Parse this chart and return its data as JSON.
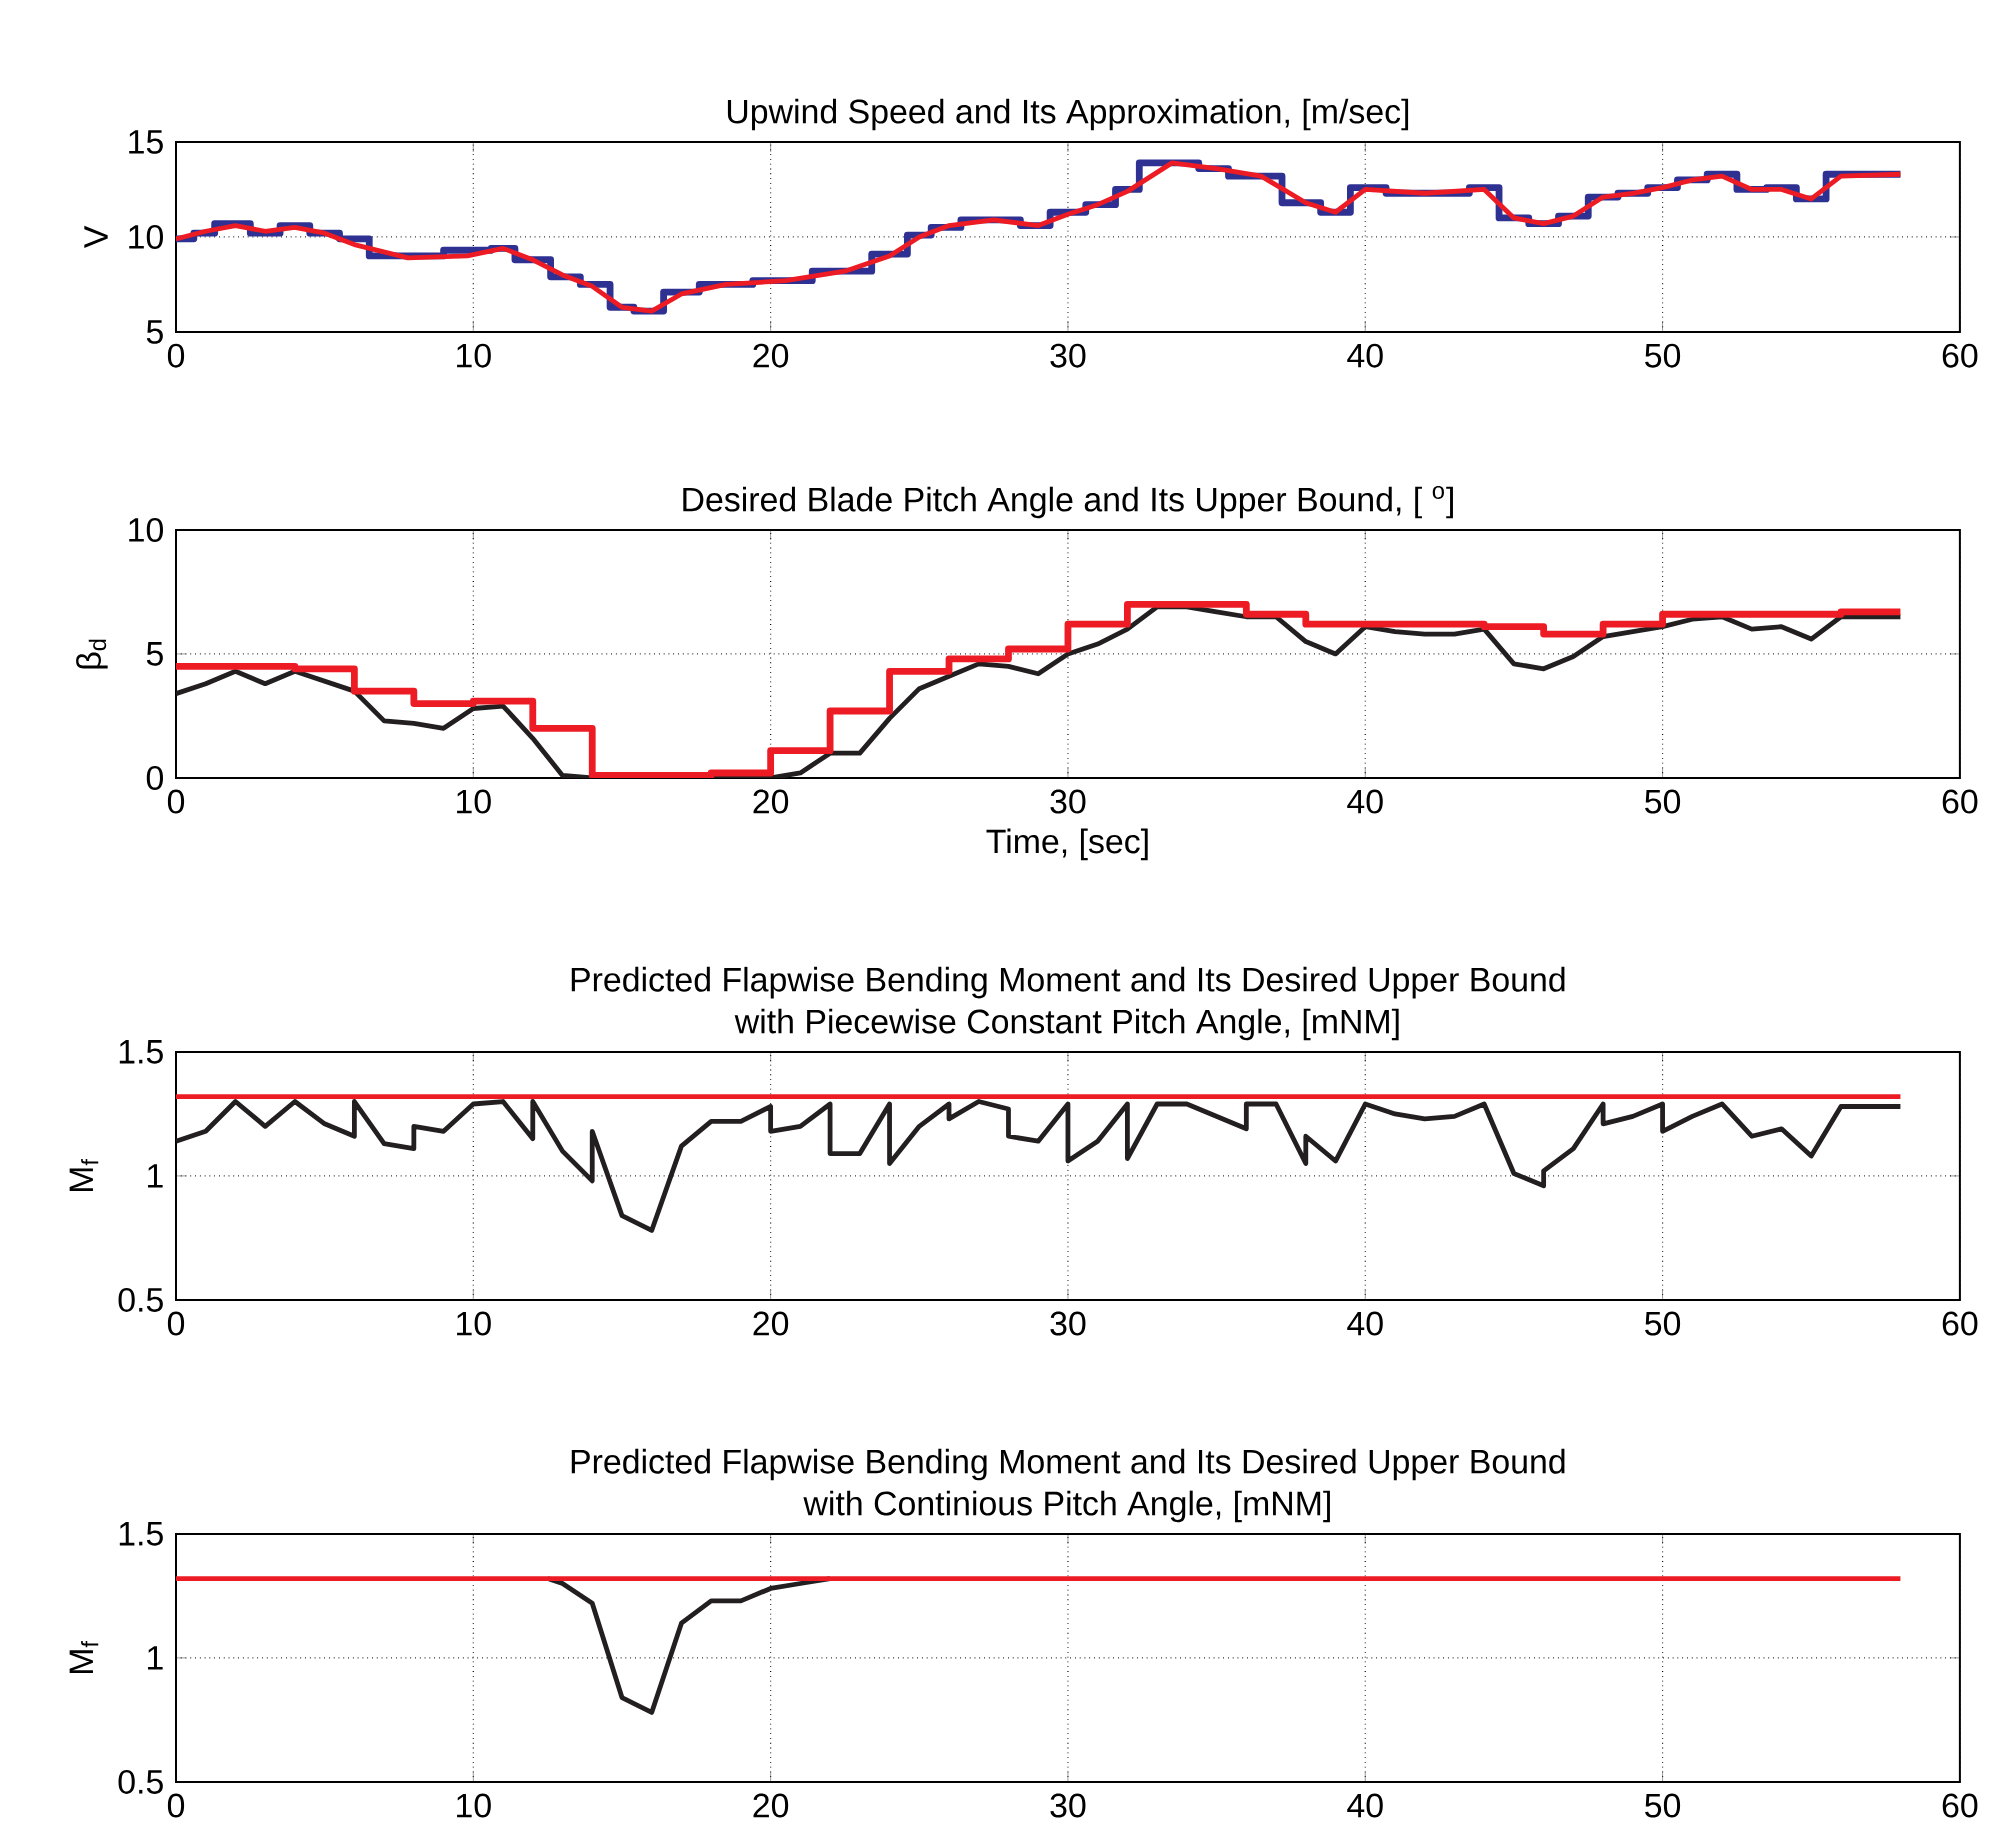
{
  "chart_data": [
    {
      "type": "line",
      "title": "Upwind Speed and Its Approximation, [m/sec]",
      "ylabel": "V",
      "xlim": [
        0,
        60
      ],
      "xticks": [
        0,
        10,
        20,
        30,
        40,
        50,
        60
      ],
      "ylim": [
        5,
        15
      ],
      "yticks": [
        5,
        10,
        15
      ],
      "grid": true,
      "line_style": "solid",
      "series": [
        {
          "type": "step",
          "color": "#2e3192",
          "x": [
            0,
            0.6,
            1.3,
            2.5,
            3.5,
            4.5,
            5.5,
            6.5,
            9.0,
            10.6,
            11.4,
            12.6,
            13.6,
            14.6,
            15.4,
            16.4,
            17.6,
            19.4,
            21.4,
            23.4,
            24.6,
            25.4,
            26.4,
            28.4,
            29.4,
            30.6,
            31.6,
            32.4,
            34.4,
            35.4,
            37.2,
            38.5,
            39.5,
            40.7,
            43.5,
            44.5,
            45.5,
            46.5,
            47.5,
            48.5,
            49.5,
            50.5,
            51.5,
            52.5,
            53.5,
            54.5,
            55.5,
            58
          ],
          "values": [
            9.9,
            10.2,
            10.7,
            10.2,
            10.6,
            10.2,
            9.9,
            9.0,
            9.3,
            9.4,
            8.8,
            7.9,
            7.5,
            6.3,
            6.1,
            7.1,
            7.5,
            7.7,
            8.2,
            9.1,
            10.1,
            10.5,
            10.9,
            10.6,
            11.3,
            11.7,
            12.5,
            13.9,
            13.6,
            13.2,
            11.8,
            11.3,
            12.6,
            12.3,
            12.6,
            11.0,
            10.7,
            11.1,
            12.1,
            12.3,
            12.6,
            13.0,
            13.3,
            12.5,
            12.6,
            12.0,
            13.3,
            13.3
          ]
        },
        {
          "color": "#ed1c24",
          "x": [
            0,
            1,
            2,
            3,
            4,
            5,
            6,
            7.8,
            9.8,
            11,
            12,
            13,
            14,
            15,
            16,
            17,
            18.5,
            20.5,
            22.5,
            24,
            25,
            26,
            27.5,
            29,
            30,
            31,
            32,
            33.5,
            35,
            36.5,
            38,
            39,
            40,
            42,
            44,
            45,
            46,
            47,
            48,
            49,
            50,
            51,
            52,
            53,
            54,
            55,
            56,
            58
          ],
          "values": [
            9.9,
            10.3,
            10.6,
            10.3,
            10.5,
            10.2,
            9.6,
            8.9,
            9.0,
            9.4,
            8.8,
            8.0,
            7.4,
            6.3,
            6.1,
            7.0,
            7.5,
            7.7,
            8.2,
            9.0,
            10.0,
            10.6,
            10.9,
            10.6,
            11.2,
            11.7,
            12.4,
            13.9,
            13.6,
            13.2,
            11.8,
            11.3,
            12.5,
            12.3,
            12.5,
            11.0,
            10.7,
            11.1,
            12.1,
            12.3,
            12.6,
            13.0,
            13.2,
            12.5,
            12.5,
            12.0,
            13.2,
            13.3
          ]
        }
      ]
    },
    {
      "type": "line",
      "title": "Desired Blade Pitch Angle and Its Upper Bound, [ $^{o}$]",
      "xlabel": "Time, [sec]",
      "ylabel": "β$_{d}$",
      "xlim": [
        0,
        60
      ],
      "xticks": [
        0,
        10,
        20,
        30,
        40,
        50,
        60
      ],
      "ylim": [
        0,
        10
      ],
      "yticks": [
        0,
        5,
        10
      ],
      "grid": true,
      "line_style": "solid",
      "series": [
        {
          "color": "#231f20",
          "x": [
            0,
            1,
            2,
            3,
            4,
            5,
            6,
            7,
            8,
            9,
            10,
            11,
            12,
            13,
            14,
            18,
            20,
            21,
            22,
            23,
            24,
            25,
            26,
            27,
            28,
            29,
            30,
            31,
            32,
            33,
            34,
            35,
            36,
            37,
            38,
            39,
            40,
            41,
            42,
            43,
            44,
            45,
            46,
            47,
            48,
            49,
            50,
            51,
            52,
            53,
            54,
            55,
            56,
            57,
            58
          ],
          "values": [
            3.4,
            3.8,
            4.3,
            3.8,
            4.3,
            3.9,
            3.5,
            2.3,
            2.2,
            2.0,
            2.8,
            2.9,
            1.6,
            0.1,
            0,
            0,
            0,
            0.2,
            1.0,
            1.0,
            2.4,
            3.6,
            4.1,
            4.6,
            4.5,
            4.2,
            5.0,
            5.4,
            6.0,
            6.9,
            6.9,
            6.7,
            6.5,
            6.5,
            5.5,
            5.0,
            6.1,
            5.9,
            5.8,
            5.8,
            6.0,
            4.6,
            4.4,
            4.9,
            5.7,
            5.9,
            6.1,
            6.4,
            6.5,
            6.0,
            6.1,
            5.6,
            6.5,
            6.5,
            6.5
          ]
        },
        {
          "type": "step",
          "color": "#ed1c24",
          "x": [
            0,
            4,
            6,
            8,
            10,
            12,
            14,
            18,
            20,
            22,
            24,
            26,
            28,
            30,
            32,
            36,
            38,
            44,
            46,
            48,
            50,
            56,
            58
          ],
          "values": [
            4.5,
            4.4,
            3.5,
            3.0,
            3.1,
            2.0,
            0.1,
            0.2,
            1.1,
            2.7,
            4.3,
            4.8,
            5.2,
            6.2,
            7.0,
            6.6,
            6.2,
            6.1,
            5.8,
            6.2,
            6.6,
            6.7,
            6.7
          ]
        }
      ]
    },
    {
      "type": "line",
      "title": "Predicted Flapwise Bending Moment and Its Desired Upper Bound",
      "subtitle": "with Piecewise Constant Pitch Angle, [mNM]",
      "ylabel": "M$_{f}$",
      "xlim": [
        0,
        60
      ],
      "xticks": [
        0,
        10,
        20,
        30,
        40,
        50,
        60
      ],
      "ylim": [
        0.5,
        1.5
      ],
      "yticks": [
        0.5,
        1,
        1.5
      ],
      "grid": true,
      "line_style": "solid",
      "series": [
        {
          "color": "#ed1c24",
          "x": [
            0,
            58
          ],
          "values": [
            1.32,
            1.32
          ]
        },
        {
          "color": "#231f20",
          "x": [
            0,
            1,
            2,
            3,
            4,
            5,
            6,
            6,
            7,
            8,
            8,
            9,
            10,
            11,
            12,
            12,
            13,
            14,
            14,
            15,
            16,
            17,
            18,
            19,
            20,
            20,
            21,
            22,
            22,
            23,
            24,
            24,
            25,
            26,
            26,
            27,
            28,
            28,
            29,
            30,
            30,
            31,
            32,
            32,
            33,
            34,
            36,
            36,
            37,
            38,
            38,
            39,
            40,
            41,
            42,
            43,
            44,
            45,
            46,
            46,
            47,
            48,
            48,
            49,
            50,
            50,
            51,
            52,
            53,
            54,
            55,
            56,
            58
          ],
          "values": [
            1.14,
            1.18,
            1.3,
            1.2,
            1.3,
            1.21,
            1.16,
            1.3,
            1.13,
            1.11,
            1.2,
            1.18,
            1.29,
            1.3,
            1.15,
            1.3,
            1.1,
            0.98,
            1.18,
            0.84,
            0.78,
            1.12,
            1.22,
            1.22,
            1.28,
            1.18,
            1.2,
            1.29,
            1.09,
            1.09,
            1.29,
            1.05,
            1.2,
            1.29,
            1.23,
            1.3,
            1.27,
            1.16,
            1.14,
            1.29,
            1.06,
            1.14,
            1.29,
            1.07,
            1.29,
            1.29,
            1.19,
            1.29,
            1.29,
            1.05,
            1.16,
            1.06,
            1.29,
            1.25,
            1.23,
            1.24,
            1.29,
            1.01,
            0.96,
            1.02,
            1.11,
            1.29,
            1.21,
            1.24,
            1.29,
            1.18,
            1.24,
            1.29,
            1.16,
            1.19,
            1.08,
            1.28,
            1.28
          ]
        }
      ]
    },
    {
      "type": "line",
      "title": "Predicted Flapwise Bending Moment and Its Desired Upper Bound",
      "subtitle": "with Continious Pitch Angle, [mNM]",
      "ylabel": "M$_{f}$",
      "xlim": [
        0,
        60
      ],
      "xticks": [
        0,
        10,
        20,
        30,
        40,
        50,
        60
      ],
      "ylim": [
        0.5,
        1.5
      ],
      "yticks": [
        0.5,
        1,
        1.5
      ],
      "grid": true,
      "line_style": "solid",
      "series": [
        {
          "color": "#231f20",
          "x": [
            12.5,
            13,
            14,
            15,
            16,
            17,
            18,
            19,
            20,
            21,
            22
          ],
          "values": [
            1.32,
            1.3,
            1.22,
            0.84,
            0.78,
            1.14,
            1.23,
            1.23,
            1.28,
            1.3,
            1.32
          ]
        },
        {
          "color": "#ed1c24",
          "x": [
            0,
            58
          ],
          "values": [
            1.32,
            1.32
          ]
        }
      ]
    }
  ]
}
